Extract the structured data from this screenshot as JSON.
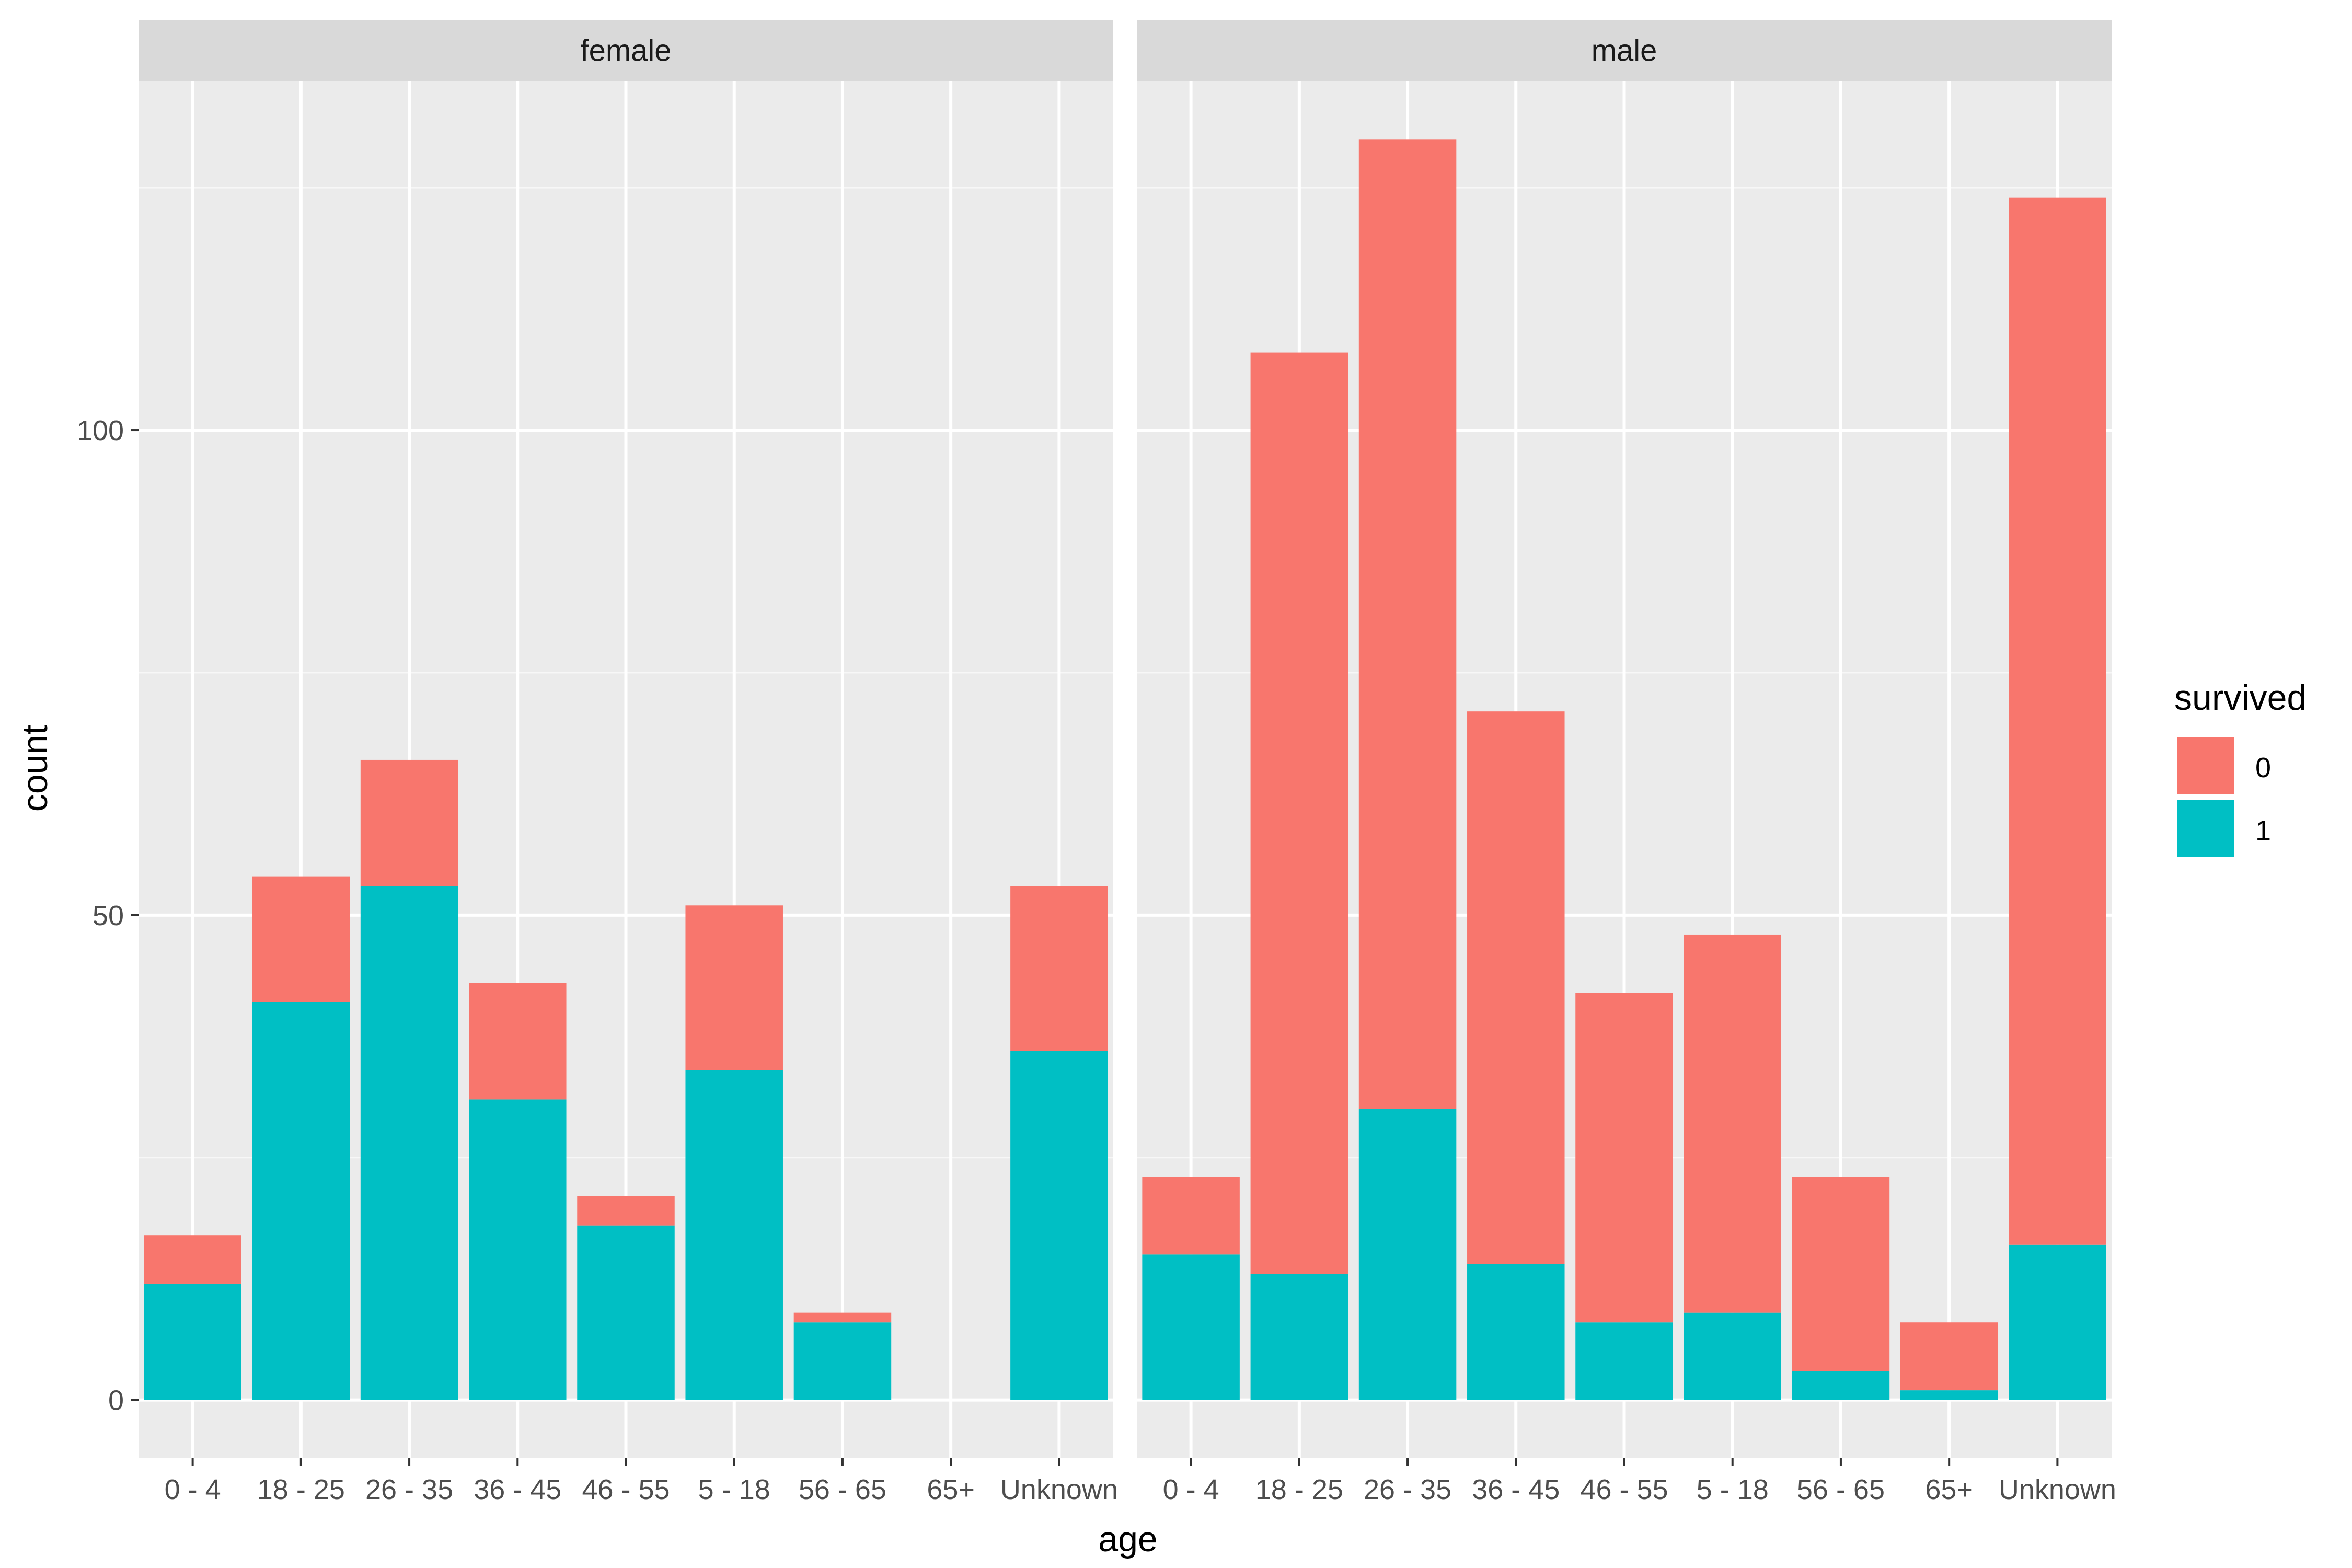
{
  "chart_data": {
    "type": "bar",
    "stacked": true,
    "facet_by": "sex",
    "xlabel": "age",
    "ylabel": "count",
    "categories": [
      "0 - 4",
      "18 - 25",
      "26 - 35",
      "36 - 45",
      "46 - 55",
      "5 - 18",
      "56 - 65",
      "65+",
      "Unknown"
    ],
    "ylim": [
      -6,
      136
    ],
    "yticks": [
      0,
      50,
      100
    ],
    "grid": true,
    "legend": {
      "title": "survived",
      "position": "right",
      "entries": [
        {
          "label": "0",
          "color": "#F8766D"
        },
        {
          "label": "1",
          "color": "#00BFC4"
        }
      ]
    },
    "panels": [
      {
        "strip": "female",
        "series": [
          {
            "name": "1",
            "color": "#00BFC4",
            "values": [
              12,
              41,
              53,
              31,
              18,
              34,
              8,
              0,
              36
            ]
          },
          {
            "name": "0",
            "color": "#F8766D",
            "values": [
              5,
              13,
              13,
              12,
              3,
              17,
              1,
              0,
              17
            ]
          }
        ]
      },
      {
        "strip": "male",
        "series": [
          {
            "name": "1",
            "color": "#00BFC4",
            "values": [
              15,
              13,
              30,
              14,
              8,
              9,
              3,
              1,
              16
            ]
          },
          {
            "name": "0",
            "color": "#F8766D",
            "values": [
              8,
              95,
              100,
              57,
              34,
              39,
              20,
              7,
              108
            ]
          }
        ]
      }
    ]
  }
}
